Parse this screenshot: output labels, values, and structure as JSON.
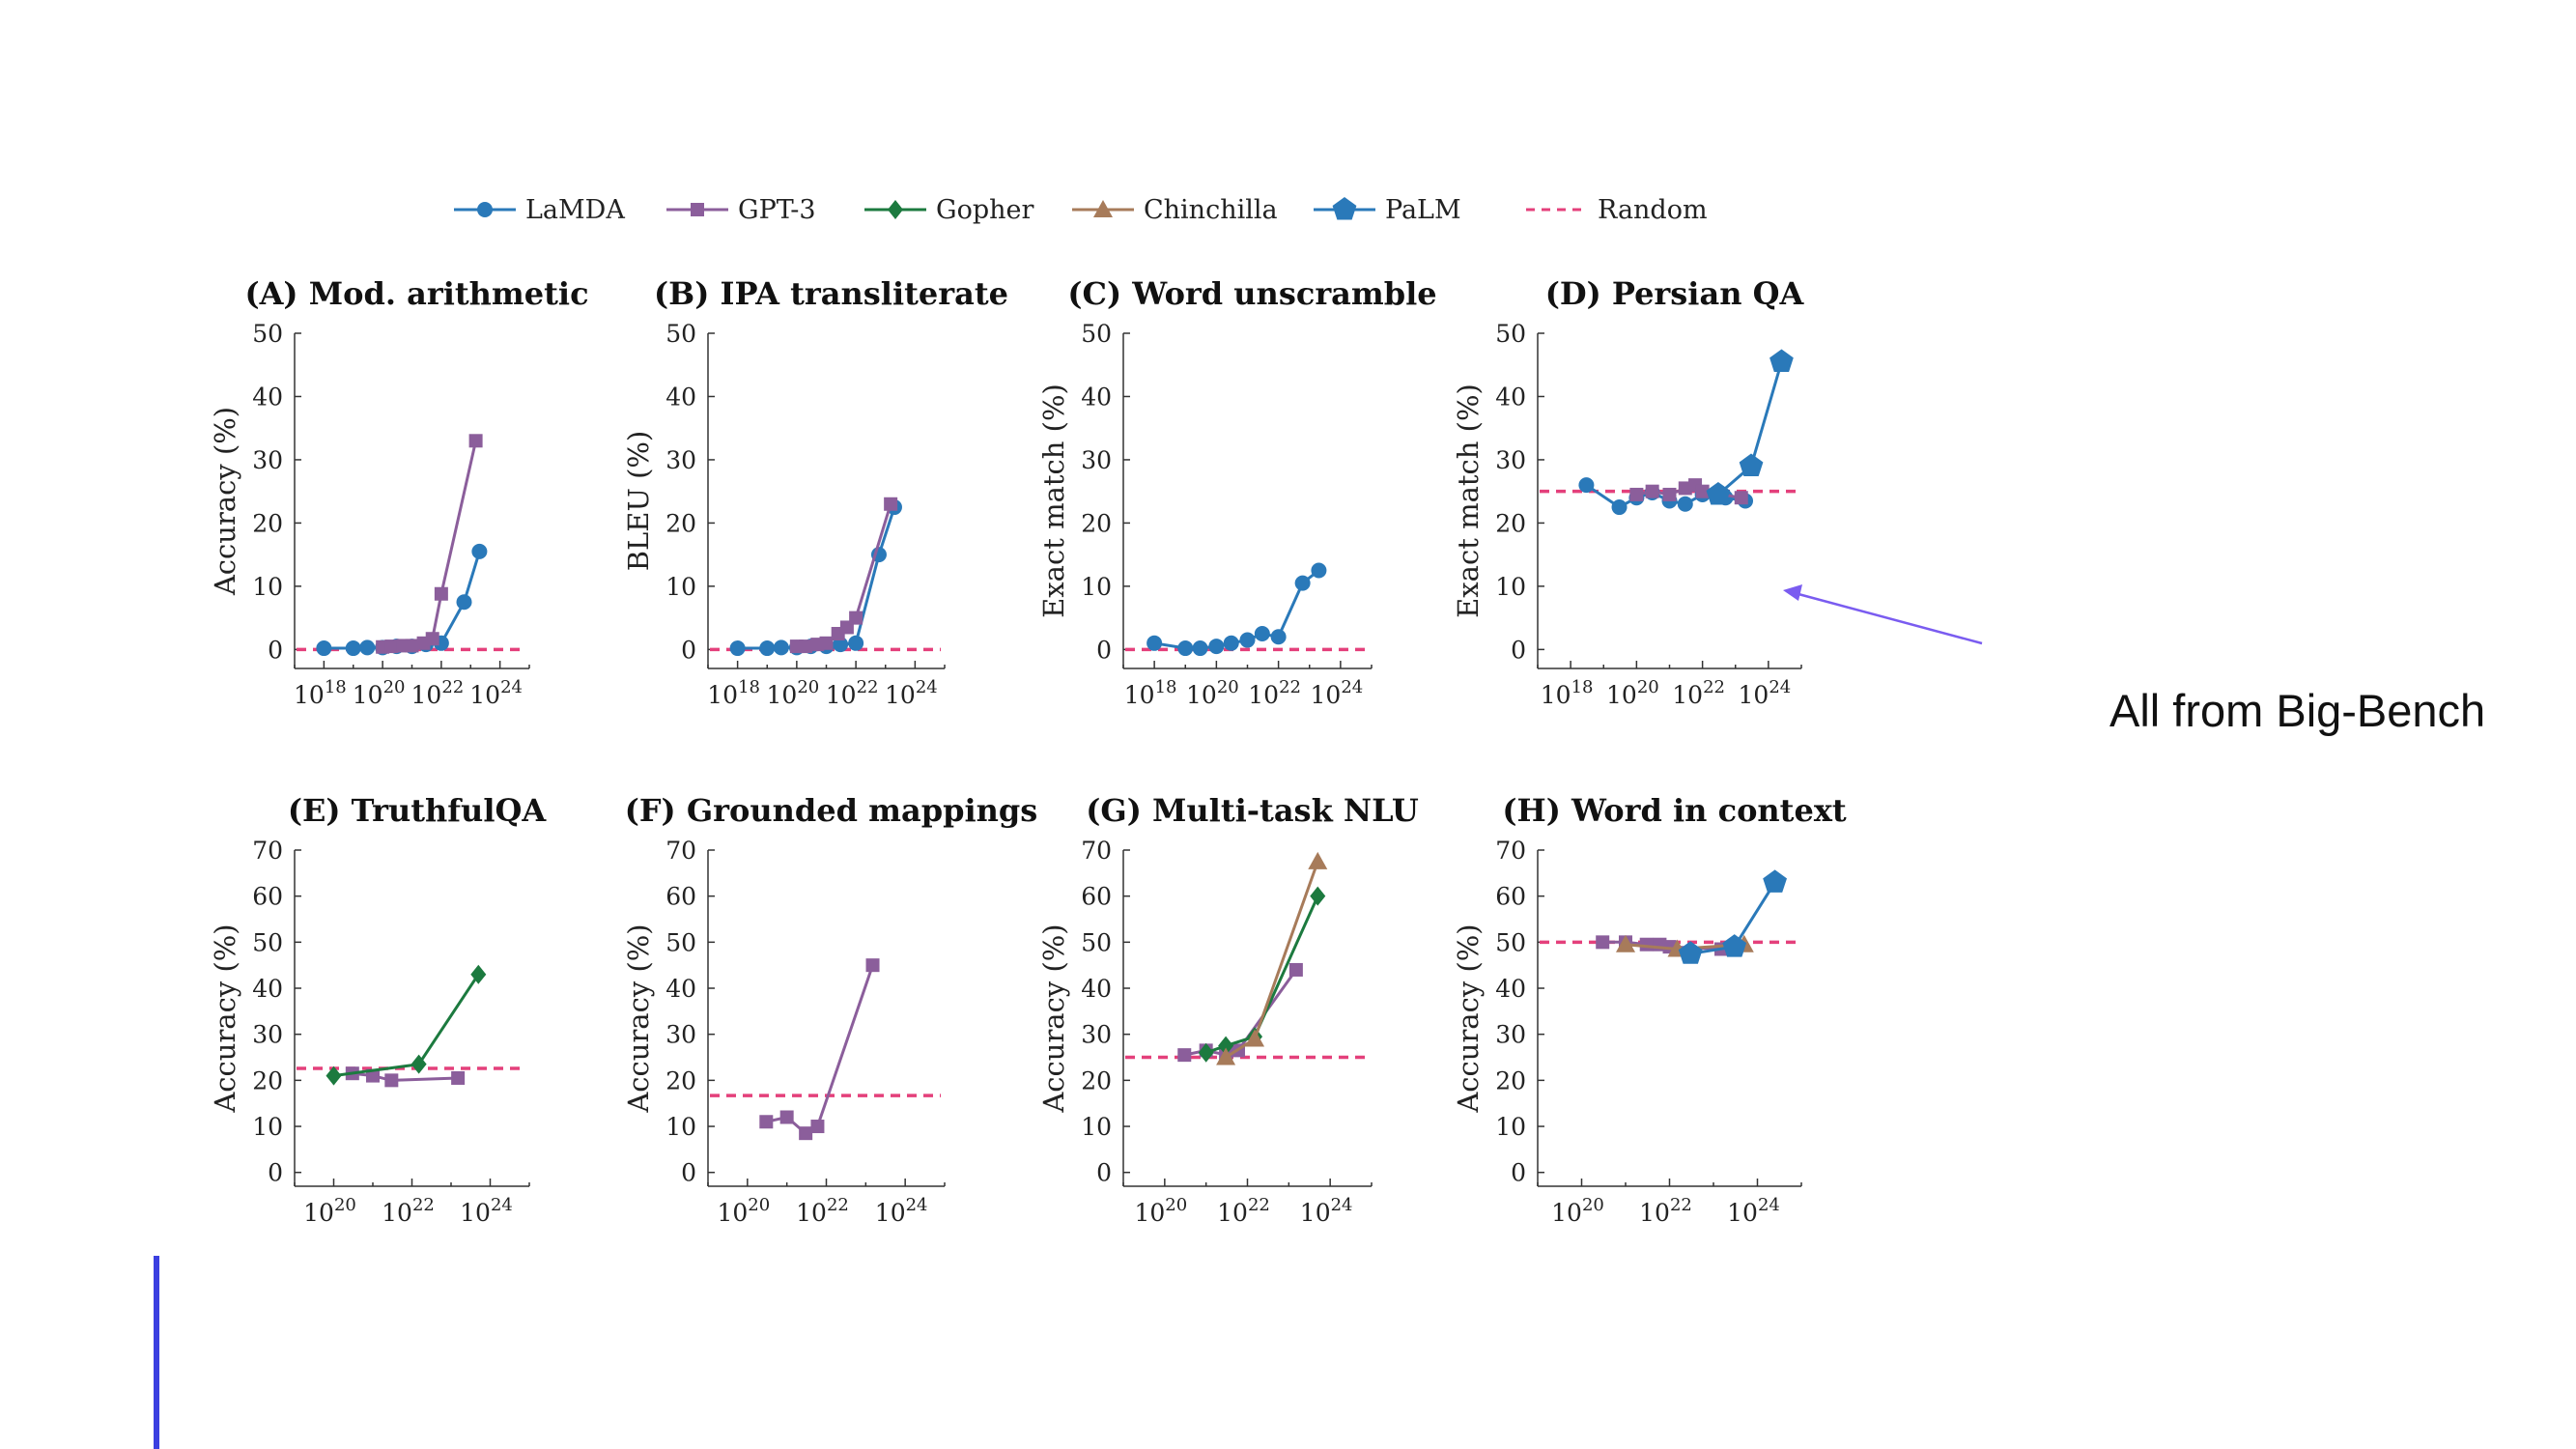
{
  "legend": [
    {
      "name": "LaMDA",
      "color": "#2a79b9",
      "marker": "circle",
      "dashed": false
    },
    {
      "name": "GPT-3",
      "color": "#8b5e9b",
      "marker": "square",
      "dashed": false
    },
    {
      "name": "Gopher",
      "color": "#1c7a3f",
      "marker": "diamond",
      "dashed": false
    },
    {
      "name": "Chinchilla",
      "color": "#a77b5a",
      "marker": "triangle",
      "dashed": false
    },
    {
      "name": "PaLM",
      "color": "#2a79b9",
      "marker": "pentagon",
      "dashed": false
    },
    {
      "name": "Random",
      "color": "#e4407b",
      "marker": "none",
      "dashed": true
    }
  ],
  "side_note": "All from Big-Bench",
  "arrow_color": "#7a5cf0",
  "chart_data": [
    {
      "panel": "A",
      "title": "(A) Mod. arithmetic",
      "ylabel": "Accuracy (%)",
      "type": "line",
      "x_scale": "log",
      "xlim": [
        1e+17,
        1e+25
      ],
      "ylim": [
        -3,
        50
      ],
      "xticks": [
        "1018",
        "1020",
        "1022",
        "1024"
      ],
      "yticks": [
        0,
        10,
        20,
        30,
        40,
        50
      ],
      "random": 0,
      "series": [
        {
          "name": "LaMDA",
          "points": [
            [
              1e+18,
              0.2
            ],
            [
              1e+19,
              0.2
            ],
            [
              3e+19,
              0.3
            ],
            [
              1e+20,
              0.3
            ],
            [
              3e+20,
              0.5
            ],
            [
              1e+21,
              0.5
            ],
            [
              3e+21,
              0.8
            ],
            [
              1e+22,
              1.0
            ],
            [
              6e+22,
              7.5
            ],
            [
              2e+23,
              15.5
            ]
          ]
        },
        {
          "name": "GPT-3",
          "points": [
            [
              1e+20,
              0.4
            ],
            [
              2e+20,
              0.5
            ],
            [
              5e+20,
              0.6
            ],
            [
              1e+21,
              0.6
            ],
            [
              2.5e+21,
              1.0
            ],
            [
              5e+21,
              1.7
            ],
            [
              1e+22,
              8.8
            ],
            [
              1.5e+23,
              33.0
            ]
          ]
        }
      ]
    },
    {
      "panel": "B",
      "title": "(B) IPA transliterate",
      "ylabel": "BLEU (%)",
      "type": "line",
      "x_scale": "log",
      "xlim": [
        1e+17,
        1e+25
      ],
      "ylim": [
        -3,
        50
      ],
      "xticks": [
        "1018",
        "1020",
        "1022",
        "1024"
      ],
      "yticks": [
        0,
        10,
        20,
        30,
        40,
        50
      ],
      "random": 0,
      "series": [
        {
          "name": "LaMDA",
          "points": [
            [
              1e+18,
              0.2
            ],
            [
              1e+19,
              0.2
            ],
            [
              3e+19,
              0.3
            ],
            [
              1e+20,
              0.3
            ],
            [
              3e+20,
              0.5
            ],
            [
              1e+21,
              0.5
            ],
            [
              3e+21,
              0.8
            ],
            [
              1e+22,
              1.0
            ],
            [
              6e+22,
              15.0
            ],
            [
              2e+23,
              22.5
            ]
          ]
        },
        {
          "name": "GPT-3",
          "points": [
            [
              1e+20,
              0.5
            ],
            [
              2e+20,
              0.5
            ],
            [
              5e+20,
              0.8
            ],
            [
              1e+21,
              1.0
            ],
            [
              2.5e+21,
              2.5
            ],
            [
              5e+21,
              3.5
            ],
            [
              1e+22,
              5.0
            ],
            [
              1.5e+23,
              23.0
            ]
          ]
        }
      ]
    },
    {
      "panel": "C",
      "title": "(C) Word unscramble",
      "ylabel": "Exact match (%)",
      "type": "line",
      "x_scale": "log",
      "xlim": [
        1e+17,
        1e+25
      ],
      "ylim": [
        -3,
        50
      ],
      "xticks": [
        "1018",
        "1020",
        "1022",
        "1024"
      ],
      "yticks": [
        0,
        10,
        20,
        30,
        40,
        50
      ],
      "random": 0,
      "series": [
        {
          "name": "LaMDA",
          "points": [
            [
              1e+18,
              1.0
            ],
            [
              1e+19,
              0.2
            ],
            [
              3e+19,
              0.2
            ],
            [
              1e+20,
              0.5
            ],
            [
              3e+20,
              1.0
            ],
            [
              1e+21,
              1.5
            ],
            [
              3e+21,
              2.5
            ],
            [
              1e+22,
              2.0
            ],
            [
              6e+22,
              10.5
            ],
            [
              2e+23,
              12.5
            ]
          ]
        }
      ]
    },
    {
      "panel": "D",
      "title": "(D) Persian QA",
      "ylabel": "Exact match (%)",
      "type": "line",
      "x_scale": "log",
      "xlim": [
        1e+17,
        1e+25
      ],
      "ylim": [
        -3,
        50
      ],
      "xticks": [
        "1018",
        "1020",
        "1022",
        "1024"
      ],
      "yticks": [
        0,
        10,
        20,
        30,
        40,
        50
      ],
      "random": 25,
      "series": [
        {
          "name": "LaMDA",
          "points": [
            [
              3e+18,
              26.0
            ],
            [
              3e+19,
              22.5
            ],
            [
              1e+20,
              24.0
            ],
            [
              3e+20,
              24.8
            ],
            [
              1e+21,
              23.5
            ],
            [
              3e+21,
              23.0
            ],
            [
              1e+22,
              24.5
            ],
            [
              5e+22,
              24.0
            ],
            [
              2e+23,
              23.5
            ]
          ]
        },
        {
          "name": "GPT-3",
          "points": [
            [
              1e+20,
              24.5
            ],
            [
              3e+20,
              25.0
            ],
            [
              1e+21,
              24.5
            ],
            [
              3e+21,
              25.5
            ],
            [
              6e+21,
              26.0
            ],
            [
              1e+22,
              25.0
            ],
            [
              1.5e+23,
              24.0
            ]
          ]
        },
        {
          "name": "PaLM",
          "points": [
            [
              3e+22,
              24.5
            ],
            [
              3e+23,
              29.0
            ],
            [
              2.5e+24,
              45.5
            ]
          ]
        }
      ]
    },
    {
      "panel": "E",
      "title": "(E) TruthfulQA",
      "ylabel": "Accuracy (%)",
      "type": "line",
      "x_scale": "log",
      "xlim": [
        1e+19,
        1e+25
      ],
      "ylim": [
        -3,
        70
      ],
      "xticks": [
        "1020",
        "1022",
        "1024"
      ],
      "yticks": [
        0,
        10,
        20,
        30,
        40,
        50,
        60,
        70
      ],
      "random": 22.6,
      "series": [
        {
          "name": "GPT-3",
          "points": [
            [
              3e+20,
              21.5
            ],
            [
              1e+21,
              21.0
            ],
            [
              3e+21,
              20.0
            ],
            [
              1.5e+23,
              20.5
            ]
          ]
        },
        {
          "name": "Gopher",
          "points": [
            [
              1e+20,
              21.0
            ],
            [
              1.5e+22,
              23.5
            ],
            [
              5e+23,
              43.0
            ]
          ]
        }
      ]
    },
    {
      "panel": "F",
      "title": "(F) Grounded mappings",
      "ylabel": "Accuracy (%)",
      "type": "line",
      "x_scale": "log",
      "xlim": [
        1e+19,
        1e+25
      ],
      "ylim": [
        -3,
        70
      ],
      "xticks": [
        "1020",
        "1022",
        "1024"
      ],
      "yticks": [
        0,
        10,
        20,
        30,
        40,
        50,
        60,
        70
      ],
      "random": 16.7,
      "series": [
        {
          "name": "GPT-3",
          "points": [
            [
              3e+20,
              11.0
            ],
            [
              1e+21,
              12.0
            ],
            [
              3e+21,
              8.5
            ],
            [
              6e+21,
              10.0
            ],
            [
              1.5e+23,
              45.0
            ]
          ]
        }
      ]
    },
    {
      "panel": "G",
      "title": "(G) Multi-task NLU",
      "ylabel": "Accuracy (%)",
      "type": "line",
      "x_scale": "log",
      "xlim": [
        1e+19,
        1e+25
      ],
      "ylim": [
        -3,
        70
      ],
      "xticks": [
        "1020",
        "1022",
        "1024"
      ],
      "yticks": [
        0,
        10,
        20,
        30,
        40,
        50,
        60,
        70
      ],
      "random": 25,
      "series": [
        {
          "name": "GPT-3",
          "points": [
            [
              3e+20,
              25.5
            ],
            [
              1e+21,
              26.5
            ],
            [
              3e+21,
              25.5
            ],
            [
              6e+21,
              26.5
            ],
            [
              1.5e+23,
              44.0
            ]
          ]
        },
        {
          "name": "Gopher",
          "points": [
            [
              1e+21,
              26.0
            ],
            [
              3e+21,
              27.5
            ],
            [
              1.5e+22,
              29.5
            ],
            [
              5e+23,
              60.0
            ]
          ]
        },
        {
          "name": "Chinchilla",
          "points": [
            [
              3e+21,
              25.0
            ],
            [
              1.5e+22,
              29.0
            ],
            [
              5e+23,
              67.5
            ]
          ]
        }
      ]
    },
    {
      "panel": "H",
      "title": "(H) Word in context",
      "ylabel": "Accuracy (%)",
      "type": "line",
      "x_scale": "log",
      "xlim": [
        1e+19,
        1e+25
      ],
      "ylim": [
        -3,
        70
      ],
      "xticks": [
        "1020",
        "1022",
        "1024"
      ],
      "yticks": [
        0,
        10,
        20,
        30,
        40,
        50,
        60,
        70
      ],
      "random": 50,
      "series": [
        {
          "name": "GPT-3",
          "points": [
            [
              3e+20,
              50.0
            ],
            [
              1e+21,
              50.0
            ],
            [
              3e+21,
              49.5
            ],
            [
              6e+21,
              49.5
            ],
            [
              1e+22,
              49.0
            ],
            [
              1.5e+23,
              48.5
            ]
          ]
        },
        {
          "name": "Chinchilla",
          "points": [
            [
              1e+21,
              49.5
            ],
            [
              1.5e+22,
              48.5
            ],
            [
              5e+23,
              49.5
            ]
          ]
        },
        {
          "name": "PaLM",
          "points": [
            [
              3e+22,
              47.5
            ],
            [
              3e+23,
              49.0
            ],
            [
              2.5e+24,
              63.0
            ]
          ]
        }
      ]
    }
  ]
}
